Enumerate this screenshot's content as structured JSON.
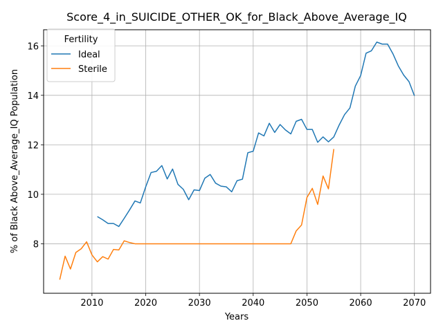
{
  "chart_data": {
    "type": "line",
    "title": "Score_4_in_SUICIDE_OTHER_OK_for_Black_Above_Average_IQ",
    "xlabel": "Years",
    "ylabel": "% of Black Above_Average_IQ Population",
    "xlim": [
      2001,
      2073
    ],
    "ylim": [
      6.0,
      16.65
    ],
    "xticks": [
      2010,
      2020,
      2030,
      2040,
      2050,
      2060,
      2070
    ],
    "yticks": [
      8,
      10,
      12,
      14,
      16
    ],
    "grid": true,
    "legend": {
      "title": "Fertility",
      "placement": "top-left"
    },
    "series": [
      {
        "name": "Ideal",
        "color": "#1f77b4",
        "x": [
          2011,
          2012,
          2013,
          2014,
          2015,
          2016,
          2017,
          2018,
          2019,
          2020,
          2021,
          2022,
          2023,
          2024,
          2025,
          2026,
          2027,
          2028,
          2029,
          2030,
          2031,
          2032,
          2033,
          2034,
          2035,
          2036,
          2037,
          2038,
          2039,
          2040,
          2041,
          2042,
          2043,
          2044,
          2045,
          2046,
          2047,
          2048,
          2049,
          2050,
          2051,
          2052,
          2053,
          2054,
          2055,
          2056,
          2057,
          2058,
          2059,
          2060,
          2061,
          2062,
          2063,
          2064,
          2065,
          2066,
          2067,
          2068,
          2069,
          2070
        ],
        "y": [
          9.1,
          8.97,
          8.82,
          8.82,
          8.7,
          9.03,
          9.37,
          9.73,
          9.65,
          10.3,
          10.88,
          10.93,
          11.16,
          10.62,
          11.02,
          10.4,
          10.2,
          9.78,
          10.18,
          10.15,
          10.65,
          10.8,
          10.45,
          10.33,
          10.3,
          10.1,
          10.55,
          10.61,
          11.68,
          11.74,
          12.48,
          12.36,
          12.87,
          12.5,
          12.82,
          12.6,
          12.44,
          12.95,
          13.03,
          12.62,
          12.62,
          12.1,
          12.32,
          12.12,
          12.32,
          12.8,
          13.22,
          13.49,
          14.37,
          14.8,
          15.7,
          15.8,
          16.15,
          16.07,
          16.07,
          15.68,
          15.19,
          14.82,
          14.55,
          13.98
        ]
      },
      {
        "name": "Sterile",
        "color": "#ff7f0e",
        "x": [
          2004,
          2005,
          2006,
          2007,
          2008,
          2009,
          2010,
          2011,
          2012,
          2013,
          2014,
          2015,
          2016,
          2017,
          2018,
          2019,
          2020,
          2021,
          2022,
          2023,
          2024,
          2025,
          2026,
          2027,
          2028,
          2029,
          2030,
          2031,
          2032,
          2033,
          2034,
          2035,
          2036,
          2037,
          2038,
          2039,
          2040,
          2041,
          2042,
          2043,
          2044,
          2045,
          2046,
          2047,
          2048,
          2049,
          2050,
          2051,
          2052,
          2053,
          2054,
          2055
        ],
        "y": [
          6.55,
          7.5,
          6.98,
          7.65,
          7.8,
          8.08,
          7.55,
          7.27,
          7.48,
          7.38,
          7.77,
          7.75,
          8.12,
          8.05,
          8.0,
          8.0,
          8.0,
          8.0,
          8.0,
          8.0,
          8.0,
          8.0,
          8.0,
          8.0,
          8.0,
          8.0,
          8.0,
          8.0,
          8.0,
          8.0,
          8.0,
          8.0,
          8.0,
          8.0,
          8.0,
          8.0,
          8.0,
          8.0,
          8.0,
          8.0,
          8.0,
          8.0,
          8.0,
          8.0,
          8.52,
          8.76,
          9.87,
          10.24,
          9.59,
          10.74,
          10.22,
          11.83
        ]
      }
    ]
  }
}
